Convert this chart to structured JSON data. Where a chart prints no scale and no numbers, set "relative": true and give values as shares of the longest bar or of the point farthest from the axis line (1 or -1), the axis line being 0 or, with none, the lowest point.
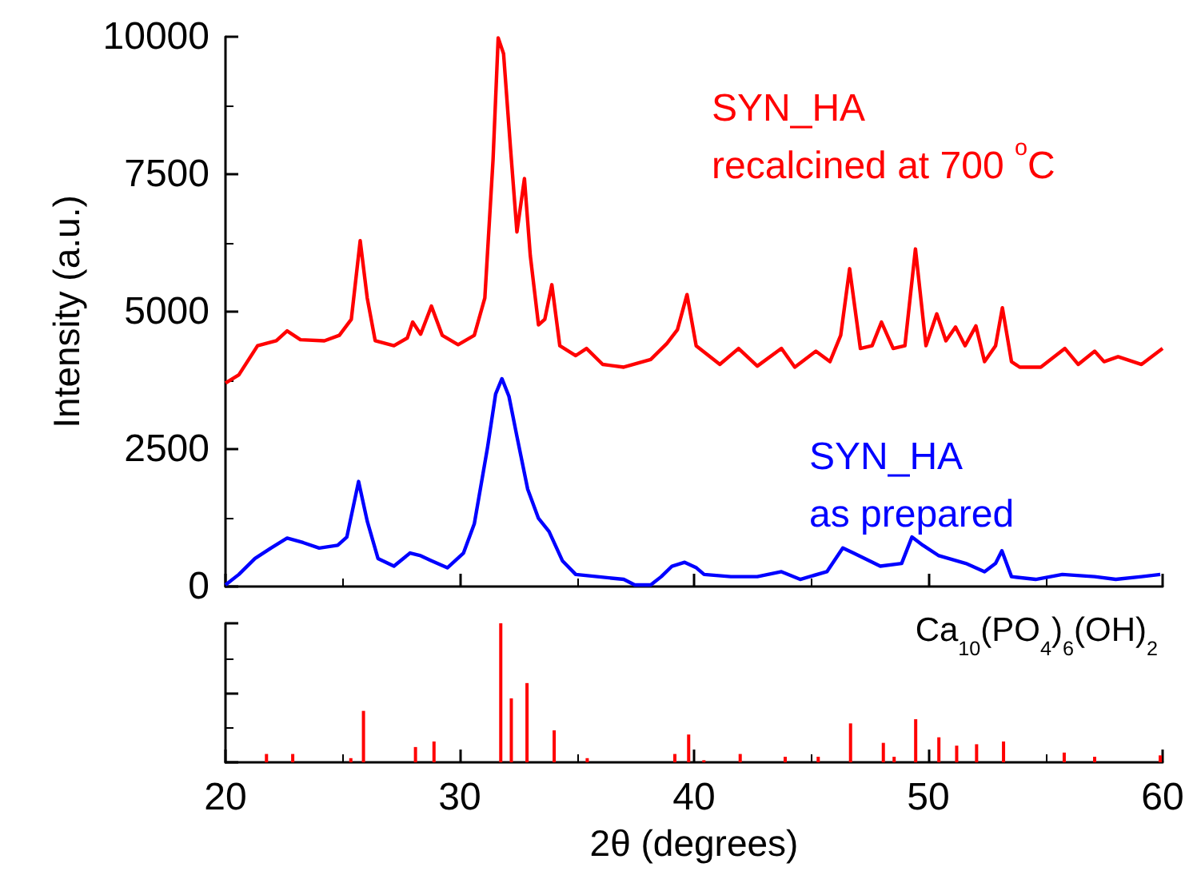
{
  "chart_data": [
    {
      "type": "line",
      "ylabel": "Intensity (a.u.)",
      "xlim": [
        20,
        60
      ],
      "xticks": [
        20,
        30,
        40,
        50,
        60
      ],
      "ylim": [
        0,
        10000
      ],
      "yticks": [
        0,
        2500,
        5000,
        7500,
        10000
      ],
      "tick_labels": "y",
      "marker": "none",
      "line_style": "solid",
      "grid": false,
      "series": [
        {
          "name": "SYN_HA\nrecalcined at 700 $^{o}$C",
          "color": "#ff0000",
          "x": [
            20.0,
            20.57,
            21.37,
            22.17,
            22.63,
            23.2,
            24.22,
            24.86,
            25.37,
            25.75,
            26.05,
            26.39,
            27.19,
            27.76,
            27.99,
            28.33,
            28.79,
            29.25,
            29.93,
            30.62,
            31.07,
            31.42,
            31.64,
            31.87,
            32.17,
            32.44,
            32.76,
            33.01,
            33.36,
            33.63,
            33.93,
            34.27,
            34.95,
            35.41,
            36.1,
            37.0,
            38.15,
            38.84,
            39.29,
            39.7,
            40.09,
            41.1,
            41.9,
            42.7,
            43.73,
            44.3,
            45.2,
            45.8,
            46.26,
            46.64,
            47.1,
            47.6,
            48.0,
            48.5,
            49.0,
            49.45,
            49.9,
            50.36,
            50.75,
            51.16,
            51.57,
            52.03,
            52.4,
            52.87,
            53.16,
            53.55,
            53.9,
            54.8,
            55.83,
            56.4,
            57.1,
            57.5,
            58.1,
            59.1,
            60.0
          ],
          "values": [
            3700,
            3850,
            4380,
            4470,
            4650,
            4490,
            4470,
            4570,
            4860,
            6290,
            5250,
            4470,
            4380,
            4520,
            4810,
            4590,
            5100,
            4570,
            4400,
            4570,
            5250,
            7760,
            9980,
            9690,
            7950,
            6450,
            7420,
            6020,
            4760,
            4860,
            5490,
            4380,
            4200,
            4330,
            4040,
            3990,
            4130,
            4420,
            4670,
            5310,
            4380,
            4040,
            4330,
            4010,
            4330,
            3990,
            4280,
            4090,
            4570,
            5780,
            4330,
            4380,
            4810,
            4330,
            4380,
            6140,
            4380,
            4960,
            4470,
            4720,
            4380,
            4740,
            4090,
            4380,
            5070,
            4090,
            3990,
            3990,
            4330,
            4040,
            4280,
            4090,
            4180,
            4040,
            4330
          ]
        },
        {
          "name": "SYN_HA\nas prepared",
          "color": "#0000ff",
          "x": [
            20.0,
            20.57,
            21.26,
            21.94,
            22.63,
            23.31,
            24.0,
            24.79,
            25.18,
            25.68,
            26.05,
            26.51,
            27.19,
            27.88,
            28.33,
            28.79,
            29.47,
            30.16,
            30.62,
            31.19,
            31.53,
            31.8,
            32.1,
            32.44,
            32.9,
            33.36,
            33.81,
            34.38,
            34.95,
            35.87,
            37.0,
            37.47,
            38.15,
            38.6,
            39.06,
            39.6,
            40.1,
            40.43,
            41.57,
            42.7,
            43.73,
            44.53,
            45.67,
            46.35,
            46.8,
            47.95,
            48.86,
            49.3,
            49.77,
            50.45,
            51.6,
            52.4,
            52.87,
            53.14,
            53.55,
            54.58,
            55.72,
            57.1,
            58.0,
            59.1,
            59.9
          ],
          "values": [
            30,
            220,
            510,
            700,
            880,
            800,
            700,
            750,
            900,
            1910,
            1190,
            510,
            370,
            610,
            560,
            470,
            340,
            610,
            1140,
            2540,
            3500,
            3780,
            3460,
            2730,
            1770,
            1240,
            1000,
            470,
            220,
            180,
            130,
            30,
            30,
            180,
            370,
            440,
            340,
            220,
            180,
            180,
            270,
            130,
            270,
            700,
            610,
            370,
            420,
            900,
            750,
            560,
            420,
            270,
            420,
            650,
            180,
            130,
            220,
            180,
            130,
            180,
            220
          ]
        }
      ]
    },
    {
      "type": "bar",
      "relative": true,
      "xlabel": "2θ (degrees)",
      "xlim": [
        20,
        60
      ],
      "xticks": [
        20,
        30,
        40,
        50,
        60
      ],
      "tick_labels": "x",
      "color": "#ff0000",
      "grid": false,
      "annotations": [
        "Ca$_{10}$(PO$_{4}$)$_{6}$(OH)$_{2}$"
      ],
      "x": [
        21.75,
        22.87,
        25.35,
        25.89,
        28.11,
        28.9,
        31.75,
        32.2,
        32.87,
        34.03,
        35.44,
        39.18,
        39.77,
        40.42,
        41.97,
        43.89,
        45.3,
        46.68,
        48.08,
        48.54,
        49.46,
        50.45,
        51.21,
        52.06,
        53.21,
        55.8,
        57.1,
        59.9
      ],
      "values": [
        0.06,
        0.06,
        0.03,
        0.37,
        0.11,
        0.15,
        1.0,
        0.46,
        0.57,
        0.23,
        0.03,
        0.06,
        0.2,
        0.015,
        0.06,
        0.04,
        0.04,
        0.28,
        0.14,
        0.04,
        0.31,
        0.18,
        0.12,
        0.13,
        0.15,
        0.07,
        0.04,
        0.05
      ]
    }
  ]
}
